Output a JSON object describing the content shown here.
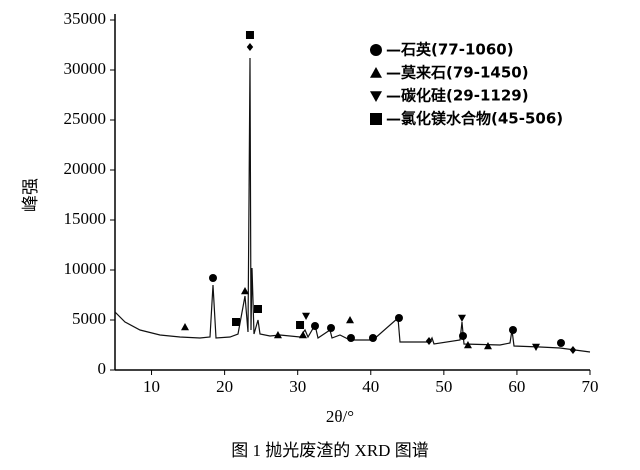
{
  "chart_data": {
    "type": "line",
    "caption": "图 1  抛光废渣的 XRD 图谱",
    "xlabel": "2θ/°",
    "ylabel": "峰强",
    "xlim": [
      5,
      70
    ],
    "xticks": [
      10,
      20,
      30,
      40,
      50,
      60,
      70
    ],
    "ylim": [
      0,
      35000
    ],
    "yticks": [
      0,
      5000,
      10000,
      15000,
      20000,
      25000,
      30000,
      35000
    ],
    "legend": "top-right",
    "series": [
      {
        "color": "#111111",
        "x": [
          5.0,
          6.37,
          8.42,
          11.16,
          13.89,
          16.63,
          18.0,
          18.41,
          18.82,
          20.74,
          21.83,
          22.79,
          23.2,
          23.34,
          23.47,
          23.61,
          23.75,
          24.02,
          24.57,
          24.84,
          26.21,
          27.58,
          30.32,
          31.0,
          31.41,
          32.37,
          32.78,
          34.42,
          34.69,
          35.79,
          37.16,
          40.3,
          43.73,
          44.0,
          48.1,
          48.38,
          48.65,
          52.21,
          52.48,
          52.76,
          57.68,
          59.05,
          59.33,
          59.6,
          63.16,
          65.9,
          67.95,
          70.0
        ],
        "values": [
          5800,
          4800,
          4000,
          3500,
          3300,
          3200,
          3300,
          8500,
          3200,
          3300,
          3600,
          7400,
          3800,
          17000,
          31200,
          4000,
          10200,
          3600,
          5000,
          3600,
          3400,
          3500,
          3300,
          4000,
          3300,
          4500,
          3200,
          4000,
          3200,
          3500,
          3000,
          3000,
          5200,
          2800,
          2800,
          3200,
          2600,
          3000,
          4800,
          2600,
          2500,
          2700,
          4000,
          2400,
          2300,
          2200,
          2000,
          1800
        ]
      }
    ],
    "phases": [
      {
        "name": "—石英(77-1060)",
        "marker": "circle",
        "color": "#000000",
        "x": [
          18.41,
          32.37,
          34.56,
          37.29,
          40.3,
          43.86,
          52.62,
          59.46,
          66.03
        ],
        "values": [
          9200,
          4400,
          4200,
          3200,
          3200,
          5200,
          3400,
          4000,
          2700
        ]
      },
      {
        "name": "—莫来石(79-1450)",
        "marker": "triangle",
        "color": "#000000",
        "x": [
          14.58,
          22.79,
          27.3,
          30.73,
          37.16,
          53.3,
          56.04
        ],
        "values": [
          4300,
          7900,
          3500,
          3500,
          5000,
          2500,
          2400
        ]
      },
      {
        "name": "—碳化硅(29-1129)",
        "marker": "triangle-down",
        "color": "#000000",
        "x": [
          31.14,
          52.48,
          62.61
        ],
        "values": [
          5400,
          5200,
          2300
        ]
      },
      {
        "name": "—氯化镁水合物(45-506)",
        "marker": "square",
        "color": "#000000",
        "x": [
          23.47,
          21.56,
          24.57,
          30.32
        ],
        "values": [
          33500,
          4800,
          6100,
          4500
        ]
      },
      {
        "marker": "diamond",
        "color": "#000000",
        "x": [
          23.47,
          47.97,
          67.67
        ],
        "values": [
          32300,
          2900,
          2000
        ]
      }
    ]
  }
}
